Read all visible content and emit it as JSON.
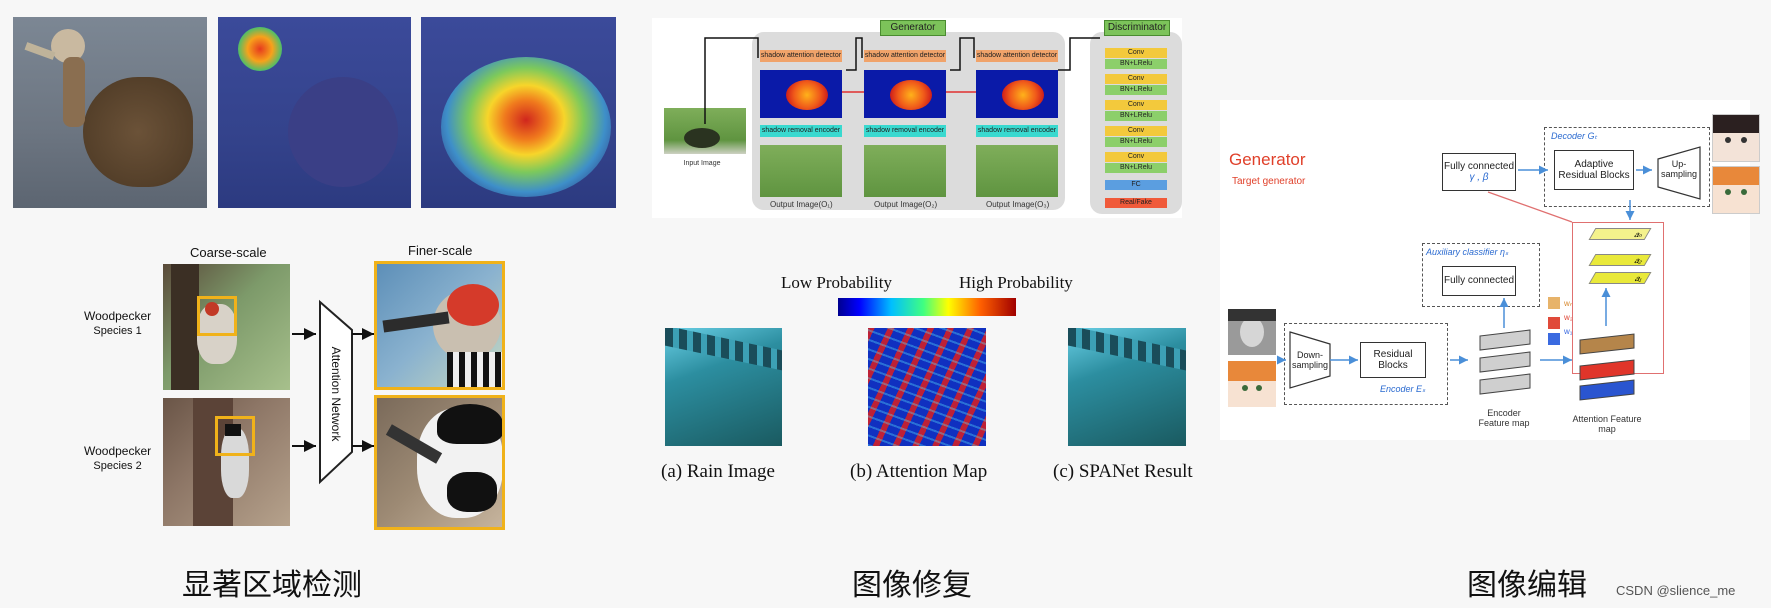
{
  "panels": {
    "left": {
      "caption": "显著区域检测",
      "coarse_label": "Coarse-scale",
      "finer_label": "Finer-scale",
      "network_label": "Attention Network",
      "species": [
        {
          "name": "Woodpecker",
          "sub": "Species 1"
        },
        {
          "name": "Woodpecker",
          "sub": "Species 2"
        }
      ]
    },
    "middle": {
      "caption": "图像修复",
      "generator_label": "Generator",
      "discriminator_label": "Discriminator",
      "input_label": "Input Image",
      "detector_label": "shadow attention detector",
      "encoder_label": "shadow removal encoder",
      "outputs": [
        "Output Image(O₁)",
        "Output Image(O₂)",
        "Output Image(O₃)"
      ],
      "disc_layers": [
        "Conv",
        "BN+LRelu",
        "Conv",
        "BN+LRelu",
        "Conv",
        "BN+LRelu",
        "Conv",
        "BN+LRelu",
        "Conv",
        "BN+LRelu"
      ],
      "fc_label": "FC",
      "realfake_label": "Real/Fake",
      "low_prob": "Low Probability",
      "high_prob": "High Probability",
      "sub_captions": [
        "(a) Rain Image",
        "(b) Attention Map",
        "(c) SPANet Result"
      ]
    },
    "right": {
      "caption": "图像编辑",
      "title": "Generator",
      "subtitle": "Target generator",
      "fully_connected": "Fully connected",
      "gamma_beta": "γ , β",
      "decoder_label": "Decoder Gₜ",
      "adaptive_blocks": "Adaptive Residual Blocks",
      "upsampling": "Up-sampling",
      "aux_label": "Auxiliary classifier ηₛ",
      "aux_fc": "Fully connected",
      "downsampling": "Down-sampling",
      "residual_blocks": "Residual Blocks",
      "encoder_label": "Encoder Eₛ",
      "encoder_map": "Encoder Feature map",
      "attention_map": "Attention Feature map",
      "weights": [
        "wₙ",
        "w₂",
        "w₁"
      ],
      "alphas": [
        "aₙ",
        "a₂",
        "a₁"
      ]
    }
  },
  "watermark": "CSDN @slience_me"
}
